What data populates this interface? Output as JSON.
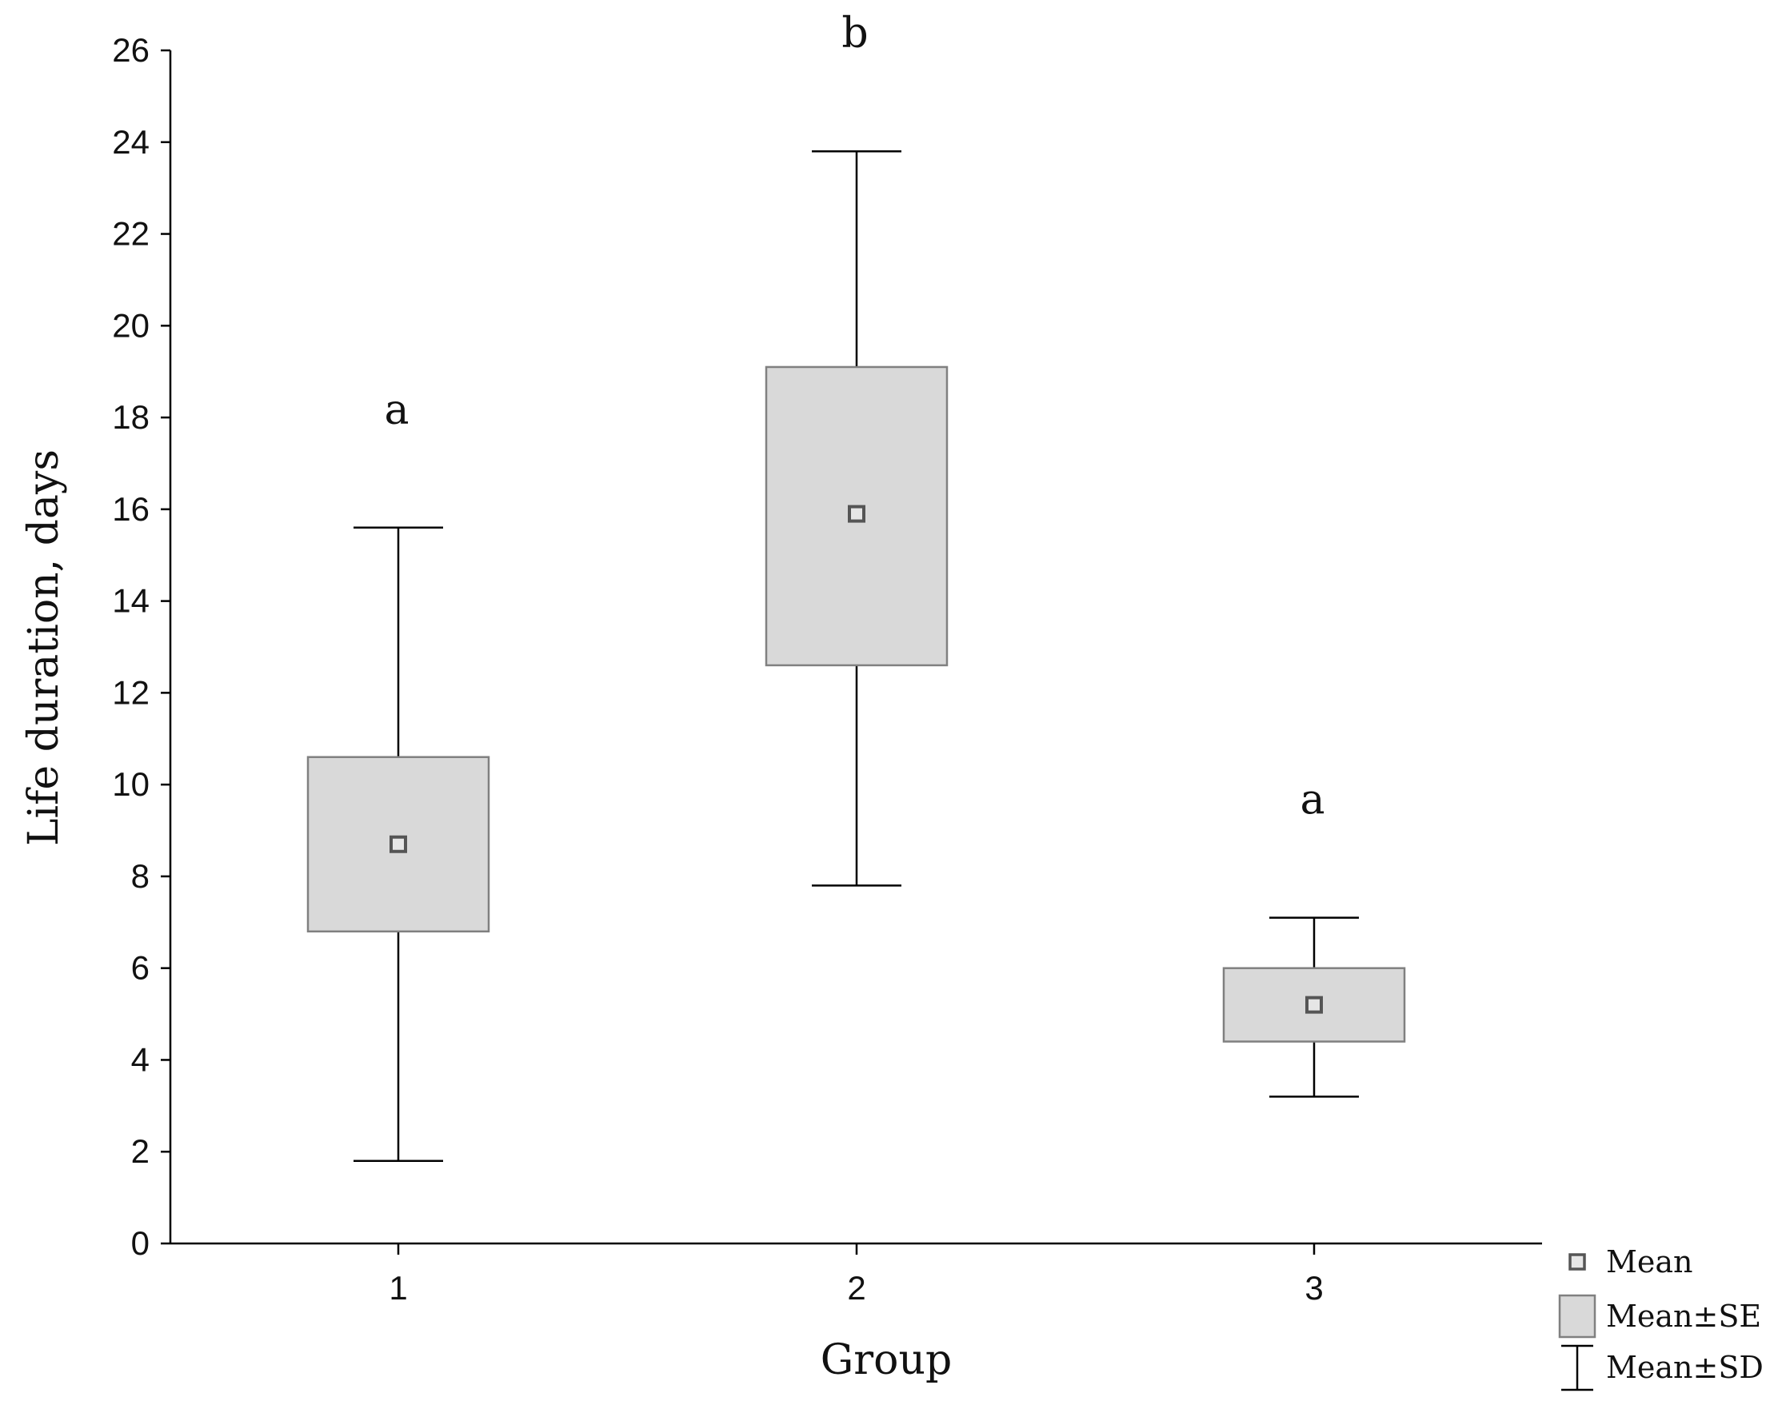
{
  "chart_data": {
    "type": "box",
    "xlabel": "Group",
    "ylabel": "Life duration, days",
    "ylim": [
      0,
      26
    ],
    "yticks": [
      0,
      2,
      4,
      6,
      8,
      10,
      12,
      14,
      16,
      18,
      20,
      22,
      24,
      26
    ],
    "grid": false,
    "legend_position": "bottom-right",
    "categories": [
      "1",
      "2",
      "3"
    ],
    "groups": [
      {
        "category": "1",
        "mean": 8.7,
        "se_low": 6.8,
        "se_high": 10.6,
        "sd_low": 1.8,
        "sd_high": 15.6,
        "letter": "a"
      },
      {
        "category": "2",
        "mean": 15.9,
        "se_low": 12.6,
        "se_high": 19.1,
        "sd_low": 7.8,
        "sd_high": 23.8,
        "letter": "b"
      },
      {
        "category": "3",
        "mean": 5.2,
        "se_low": 4.4,
        "se_high": 6.0,
        "sd_low": 3.2,
        "sd_high": 7.1,
        "letter": "a"
      }
    ],
    "legend": [
      {
        "key": "mean",
        "label": "Mean"
      },
      {
        "key": "se",
        "label": "Mean±SE"
      },
      {
        "key": "sd",
        "label": "Mean±SD"
      }
    ],
    "colors": {
      "box_fill": "#d9d9d9",
      "box_stroke": "#808080",
      "marker_stroke": "#555555",
      "line": "#000000"
    }
  }
}
